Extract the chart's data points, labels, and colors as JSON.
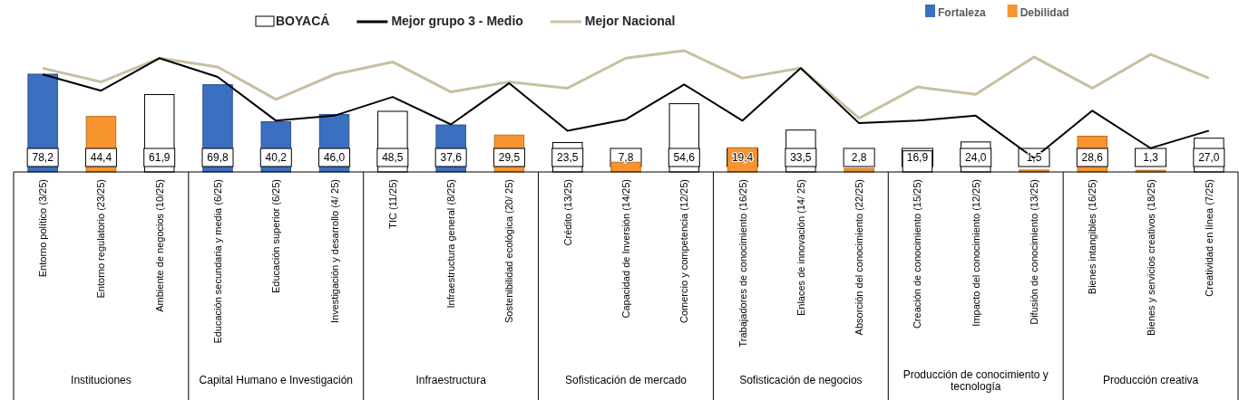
{
  "chart_data": {
    "type": "bar",
    "legend": "top",
    "categories": [
      "Entorno político (3/25)",
      "Entorno regulatorio (23/25)",
      "Ambiente de negocios (10/25)",
      "Educación secundaria y media (6/25)",
      "Educación superior (6/25)",
      "Investigación y desarrollo (4/ 25)",
      "TIC (11/25)",
      "Infraestructura general (8/25)",
      "Sostenibilidad ecológica (20/ 25)",
      "Crédito (13/25)",
      "Capacidad de Inversión (14/25)",
      "Comercio y competencia (12/25)",
      "Trabajadores de conocimiento (16/25)",
      "Enlaces de innovación (14/ 25)",
      "Absorción del conocimiento (22/25)",
      "Creación de conocimiento (15/25)",
      "Impacto del conocimiento (12/25)",
      "Difusión de conocimiento (13/25)",
      "Bienes intangibles (16/25)",
      "Bienes y servicios creativos (18/25)",
      "Creatividad en línea (7/25)"
    ],
    "series": [
      {
        "name": "BOYACÁ",
        "color": "#ffffff",
        "values": [
          null,
          null,
          61.9,
          null,
          null,
          null,
          48.5,
          null,
          null,
          23.5,
          null,
          54.6,
          null,
          33.5,
          null,
          16.9,
          24.0,
          null,
          null,
          null,
          27.0
        ],
        "value_labels": [
          null,
          null,
          "61,9",
          null,
          null,
          null,
          "48,5",
          null,
          null,
          "23,5",
          null,
          "54,6",
          null,
          "33,5",
          null,
          "16,9",
          "24,0",
          null,
          null,
          null,
          "27,0"
        ]
      },
      {
        "name": "Mejor grupo 3 - Medio",
        "type": "line",
        "color": "#000000",
        "values": [
          78,
          65,
          91,
          76,
          41,
          45,
          60,
          38,
          71,
          33,
          42,
          70,
          41,
          83,
          39,
          41,
          45,
          11,
          49,
          19,
          33
        ]
      },
      {
        "name": "Mejor Nacional",
        "type": "line",
        "color": "#c8c0a0",
        "values": [
          83,
          72,
          91,
          84,
          58,
          78,
          88,
          64,
          72,
          67,
          91,
          97,
          75,
          83,
          43,
          68,
          62,
          92,
          67,
          94,
          75
        ]
      },
      {
        "name": "Fortaleza",
        "color": "#3b6fc0",
        "values": [
          78.2,
          null,
          null,
          69.8,
          40.2,
          46.0,
          null,
          37.6,
          null,
          null,
          null,
          null,
          null,
          null,
          null,
          null,
          null,
          null,
          null,
          null,
          null
        ],
        "value_labels": [
          "78,2",
          null,
          null,
          "69,8",
          "40,2",
          "46,0",
          null,
          "37,6",
          null,
          null,
          null,
          null,
          null,
          null,
          null,
          null,
          null,
          null,
          null,
          null,
          null
        ]
      },
      {
        "name": "Debilidad",
        "color": "#f7942d",
        "values": [
          null,
          44.4,
          null,
          null,
          null,
          null,
          null,
          null,
          29.5,
          null,
          7.8,
          null,
          19.4,
          null,
          2.8,
          null,
          null,
          1.5,
          28.6,
          1.3,
          null
        ],
        "value_labels": [
          null,
          "44,4",
          null,
          null,
          null,
          null,
          null,
          null,
          "29,5",
          null,
          "7,8",
          null,
          "19,4",
          null,
          "2,8",
          null,
          null,
          "1,5",
          "28,6",
          "1,3",
          null
        ]
      }
    ],
    "annotations": [
      "Instituciones",
      "Capital Humano e Investigación",
      "Infraestructura",
      "Sofisticación de mercado",
      "Sofisticación de negocios",
      "Producción de conocimiento y tecnología",
      "Producción creativa"
    ]
  }
}
